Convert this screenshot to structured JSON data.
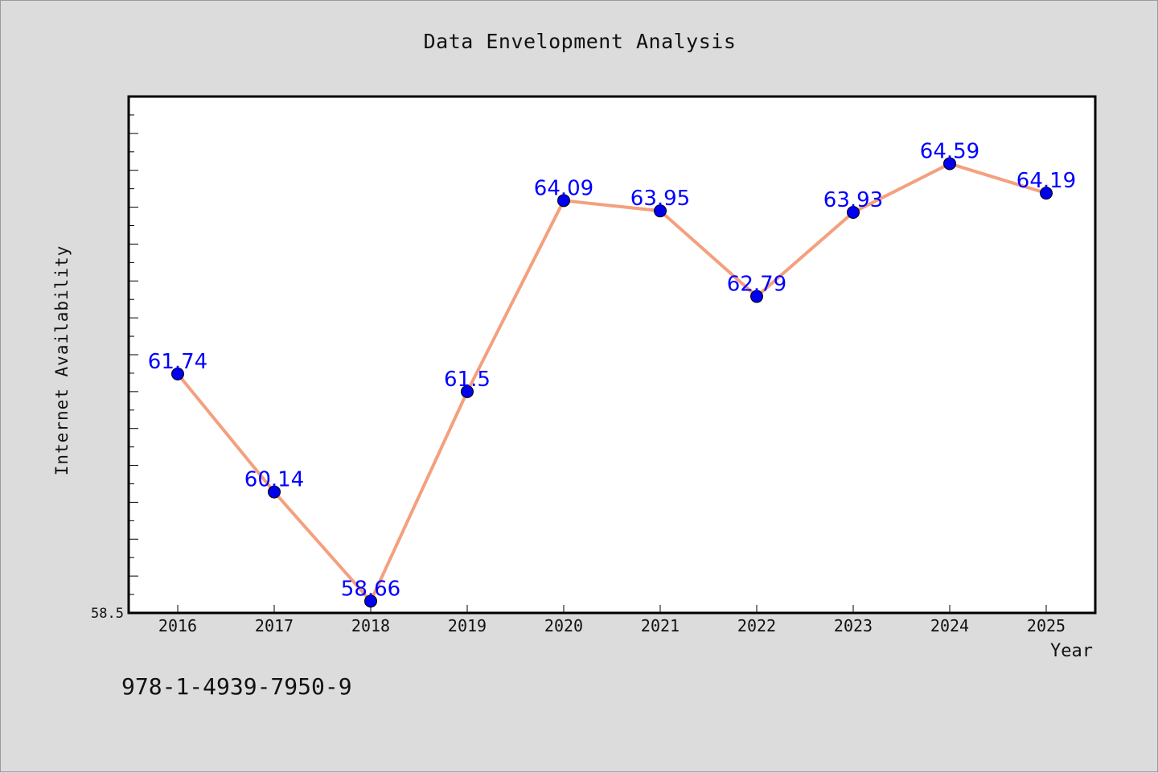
{
  "chart_data": {
    "type": "line",
    "title": "Data Envelopment Analysis",
    "xlabel": "Year",
    "ylabel": "Internet Availability",
    "categories": [
      "2016",
      "2017",
      "2018",
      "2019",
      "2020",
      "2021",
      "2022",
      "2023",
      "2024",
      "2025"
    ],
    "series": [
      {
        "values": [
          61.74,
          60.14,
          58.66,
          61.5,
          64.09,
          63.95,
          62.79,
          63.93,
          64.59,
          64.19
        ],
        "data_labels": [
          "61.74",
          "60.14",
          "58.66",
          "61.5",
          "64.09",
          "63.95",
          "62.79",
          "63.93",
          "64.59",
          "64.19"
        ]
      }
    ],
    "ylim": [
      58.5,
      65.5
    ],
    "y_tick_labels": [
      "58.5"
    ],
    "grid": false,
    "colors": {
      "line": "#f4a07e",
      "marker": "#0000ee",
      "label": "#0000ff",
      "background": "#dcdcdc",
      "plot_area": "#ffffff"
    }
  },
  "footer": {
    "isbn": "978-1-4939-7950-9"
  }
}
